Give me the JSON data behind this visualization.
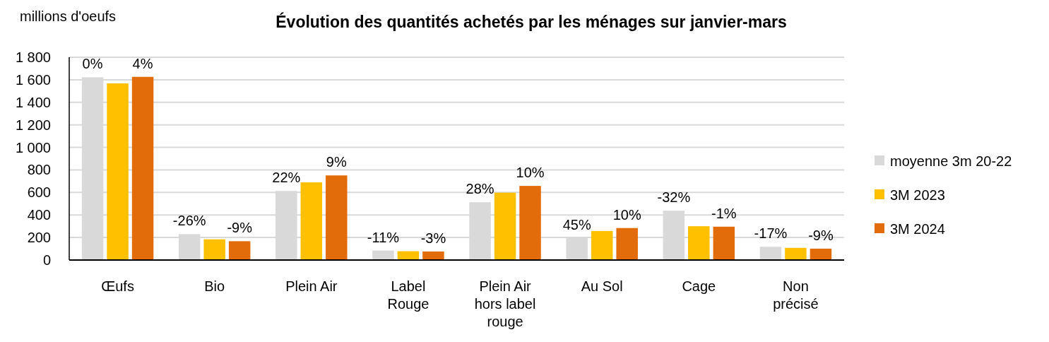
{
  "chart_data": {
    "type": "bar",
    "title": "Évolution des quantités achetés par les ménages sur janvier-mars",
    "ylabel": "millions d'oeufs",
    "categories": [
      "Œufs",
      "Bio",
      "Plein Air",
      "Label Rouge",
      "Plein Air hors label rouge",
      "Au Sol",
      "Cage",
      "Non précisé"
    ],
    "series": [
      {
        "name": "moyenne 3m 20-22",
        "color": "#d9d9d9",
        "values": [
          1622,
          230,
          613,
          84,
          513,
          196,
          438,
          118
        ]
      },
      {
        "name": "3M 2023",
        "color": "#ffc000",
        "values": [
          1568,
          184,
          689,
          78,
          598,
          258,
          300,
          108
        ]
      },
      {
        "name": "3M 2024",
        "color": "#e36c0a",
        "values": [
          1626,
          167,
          751,
          76,
          658,
          284,
          296,
          101
        ]
      }
    ],
    "annotations": [
      "0%",
      "4%",
      "-26%",
      "-9%",
      "22%",
      "9%",
      "-11%",
      "-3%",
      "28%",
      "10%",
      "45%",
      "10%",
      "-32%",
      "-1%",
      "-17%",
      "-9%"
    ],
    "ylim": [
      0,
      1800
    ],
    "yticks": [
      0,
      {
        "value": 200,
        "label": "200"
      },
      {
        "value": 400,
        "label": "400"
      },
      {
        "value": 600,
        "label": "600"
      },
      {
        "value": 800,
        "label": "800"
      },
      {
        "value": 1000,
        "label": "1 000"
      },
      {
        "value": 1200,
        "label": "1 200"
      },
      {
        "value": 1400,
        "label": "1 400"
      },
      {
        "value": 1600,
        "label": "1 600"
      },
      {
        "value": 1800,
        "label": "1 800"
      }
    ],
    "grid": "y",
    "legend": "right"
  }
}
